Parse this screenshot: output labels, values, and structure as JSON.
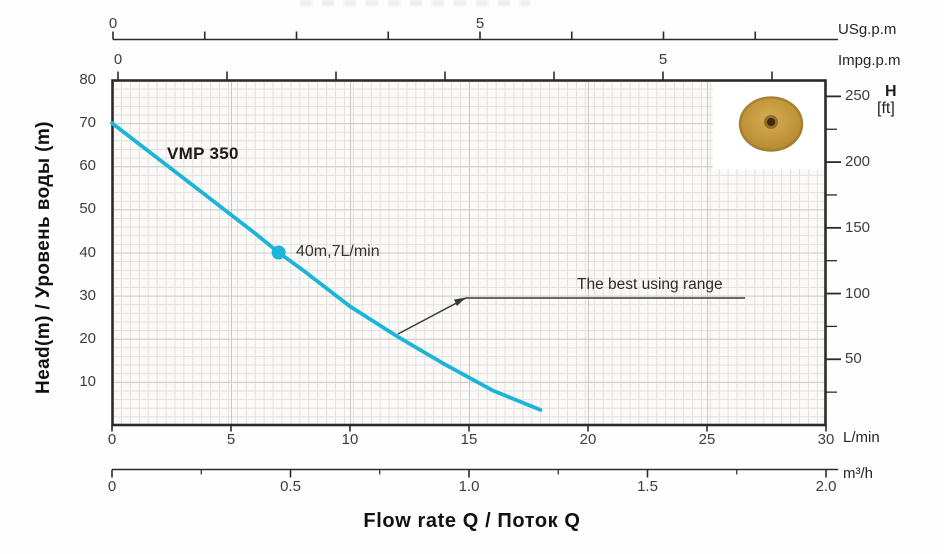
{
  "chart_data": {
    "type": "line",
    "title": "VMP 350",
    "series": [
      {
        "name": "VMP 350",
        "color": "#1cb5d8",
        "points_q_lmin_head_m": [
          [
            0,
            70
          ],
          [
            2,
            61.5
          ],
          [
            4,
            53
          ],
          [
            6,
            44.5
          ],
          [
            7,
            40
          ],
          [
            8,
            36
          ],
          [
            10,
            27.5
          ],
          [
            12,
            20.5
          ],
          [
            14,
            14
          ],
          [
            16,
            8
          ],
          [
            18,
            3.5
          ]
        ]
      }
    ],
    "marked_point": {
      "q_lmin": 7,
      "head_m": 40,
      "label": "40m,7L/min"
    },
    "annotation": {
      "text": "The best using range"
    },
    "axes": {
      "bottom_primary": {
        "unit": "L/min",
        "min": 0,
        "max": 30,
        "ticks": [
          0,
          5,
          10,
          15,
          20,
          25,
          30
        ]
      },
      "bottom_secondary": {
        "unit": "m³/h",
        "min": 0,
        "max": 2,
        "major_ticks": [
          {
            "v": 0,
            "label": "0"
          },
          {
            "v": 0.5,
            "label": "0.5"
          },
          {
            "v": 1,
            "label": "1.0"
          },
          {
            "v": 1.5,
            "label": "1.5"
          },
          {
            "v": 2,
            "label": "2.0"
          }
        ],
        "minor_ticks": [
          0.25,
          0.75,
          1.25,
          1.75
        ]
      },
      "top_primary": {
        "unit": "USg.p.m",
        "labeled_ticks": [
          {
            "v": 0,
            "label": "0"
          },
          {
            "v": 5,
            "label": "5"
          }
        ]
      },
      "top_secondary": {
        "unit": "Impg.p.m",
        "labeled_ticks": [
          {
            "v": 0,
            "label": "0"
          },
          {
            "v": 5,
            "label": "5"
          }
        ]
      },
      "left": {
        "label": "Head(m) / Уровень воды (m)",
        "min": 0,
        "max": 80,
        "ticks": [
          80,
          70,
          60,
          50,
          40,
          30,
          20,
          10
        ]
      },
      "right": {
        "label_line1": "H",
        "label_line2": "[ft]",
        "major_ticks": [
          250,
          200,
          150,
          100,
          50
        ],
        "minor_ticks": [
          225,
          175,
          125,
          75,
          25
        ]
      }
    },
    "x_axis_title": "Flow rate Q / Поток Q",
    "legend_position": "none",
    "grid": "on"
  }
}
